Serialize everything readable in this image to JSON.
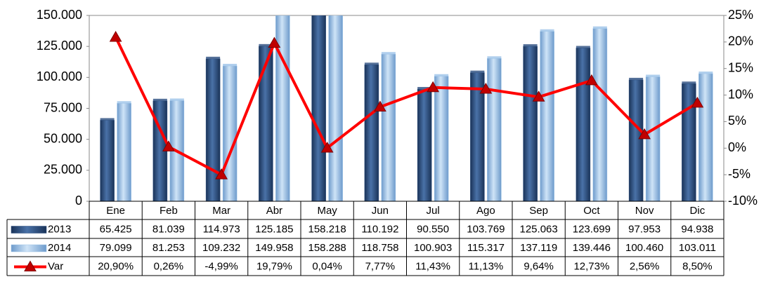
{
  "chart_data": {
    "type": "bar",
    "categories": [
      "Ene",
      "Feb",
      "Mar",
      "Abr",
      "May",
      "Jun",
      "Jul",
      "Ago",
      "Sep",
      "Oct",
      "Nov",
      "Dic"
    ],
    "series": [
      {
        "name": "2013",
        "color": "#2a4d7f",
        "values": [
          65425,
          81039,
          114973,
          125185,
          158218,
          110192,
          90550,
          103769,
          125063,
          123699,
          97953,
          94938
        ],
        "value_labels": [
          "65.425",
          "81.039",
          "114.973",
          "125.185",
          "158.218",
          "110.192",
          "90.550",
          "103.769",
          "125.063",
          "123.699",
          "97.953",
          "94.938"
        ]
      },
      {
        "name": "2014",
        "color": "#9cc3e8",
        "values": [
          79099,
          81253,
          109232,
          149958,
          158288,
          118758,
          100903,
          115317,
          137119,
          139446,
          100460,
          103011
        ],
        "value_labels": [
          "79.099",
          "81.253",
          "109.232",
          "149.958",
          "158.288",
          "118.758",
          "100.903",
          "115.317",
          "137.119",
          "139.446",
          "100.460",
          "103.011"
        ]
      },
      {
        "name": "Var",
        "type": "line",
        "axis": "y2",
        "color": "#ff0000",
        "values": [
          20.9,
          0.26,
          -4.99,
          19.79,
          0.04,
          7.77,
          11.43,
          11.13,
          9.64,
          12.73,
          2.56,
          8.5
        ],
        "value_labels": [
          "20,90%",
          "0,26%",
          "-4,99%",
          "19,79%",
          "0,04%",
          "7,77%",
          "11,43%",
          "11,13%",
          "9,64%",
          "12,73%",
          "2,56%",
          "8,50%"
        ]
      }
    ],
    "ylim": [
      0,
      150000
    ],
    "yticks": [
      0,
      {
        "value": 25000,
        "label": "25.000"
      },
      {
        "value": 50000,
        "label": "50.000"
      },
      {
        "value": 75000,
        "label": "75.000"
      },
      {
        "value": 100000,
        "label": "100.000"
      },
      {
        "value": 125000,
        "label": "125.000"
      },
      {
        "value": 150000,
        "label": "150.000"
      }
    ],
    "y2lim": [
      -10,
      25
    ],
    "y2ticks": [
      {
        "value": -10,
        "label": "-10%"
      },
      {
        "value": -5,
        "label": "-5%"
      },
      {
        "value": 0,
        "label": "0%"
      },
      {
        "value": 5,
        "label": "5%"
      },
      {
        "value": 10,
        "label": "10%"
      },
      {
        "value": 15,
        "label": "15%"
      },
      {
        "value": 20,
        "label": "20%"
      },
      {
        "value": 25,
        "label": "25%"
      }
    ],
    "legend": "table"
  }
}
